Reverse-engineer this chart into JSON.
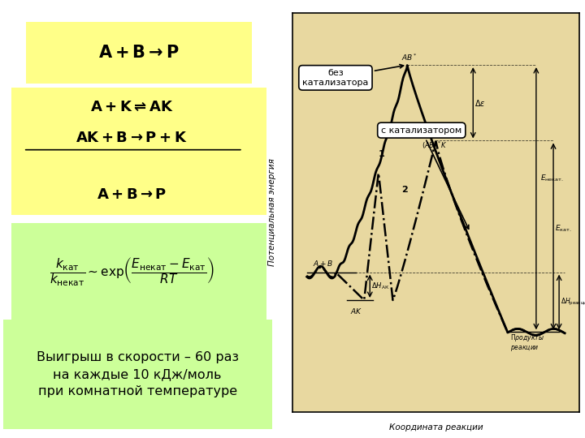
{
  "bg_color": "#ffffff",
  "left_bg": "#ffffff",
  "yellow_bg": "#ffff88",
  "green_bg": "#ccff99",
  "diagram_bg": "#e8d8a0",
  "title1": "A + B → P",
  "eq1": "A + K ⇌ AK",
  "eq2": "AK + B → P + K",
  "eq3": "A + B → P",
  "formula": "$\\\\frac{k_{\\\\text{кат}}}{k_{\\\\text{некат}}} \\\\sim \\\\exp\\\\left(\\\\frac{E_{\\\\text{некат}} - E_{\\\\text{кат}}}{RT}\\\\right)$",
  "bottom_text": "Выигрыш в скорости – 60 раз\nна каждые 10 кДж/моль\nпри комнатной температуре",
  "label_bez": "без\nкатализатора",
  "label_s": "с катализатором",
  "ylabel_diagram": "Потенциальная энергия",
  "xlabel_diagram": "Координата реакции"
}
